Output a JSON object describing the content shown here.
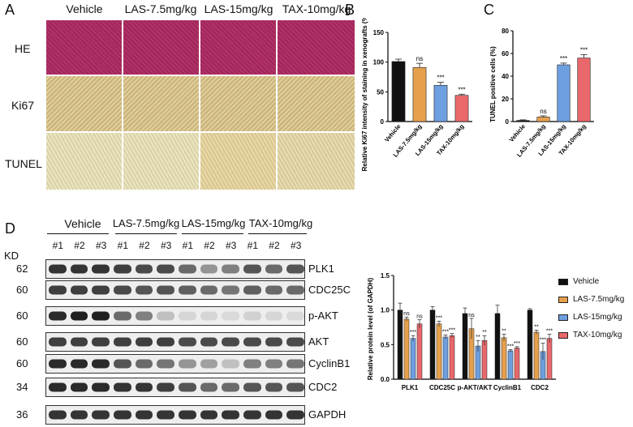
{
  "panel_labels": {
    "A": "A",
    "B": "B",
    "C": "C",
    "D": "D"
  },
  "panelA": {
    "columns": [
      "Vehicle",
      "LAS-7.5mg/kg",
      "LAS-15mg/kg",
      "TAX-10mg/kg"
    ],
    "rows": [
      "HE",
      "Ki67",
      "TUNEL"
    ]
  },
  "chart_data": [
    {
      "type": "bar",
      "panel": "B",
      "categories": [
        "Vehicle",
        "LAS-7.5mg/kg",
        "LAS-15mg/kg",
        "TAX-10mg/kg"
      ],
      "values": [
        101,
        91,
        61,
        44
      ],
      "errors": [
        4,
        7,
        5,
        2
      ],
      "significance": [
        "",
        "ns",
        "***",
        "***"
      ],
      "ylabel": "Relative Ki67 intensity of staining in xenografts (%)",
      "ylim": [
        0,
        150
      ],
      "yticks": [
        0,
        50,
        100,
        150
      ],
      "colors": [
        "#111111",
        "#e6a04c",
        "#6e9fe0",
        "#e8686c"
      ]
    },
    {
      "type": "bar",
      "panel": "C",
      "categories": [
        "Vehicle",
        "LAS-7.5mg/kg",
        "LAS-15mg/kg",
        "TAX-10mg/kg"
      ],
      "values": [
        1,
        4,
        50,
        56
      ],
      "errors": [
        0.5,
        1,
        1.5,
        3
      ],
      "significance": [
        "",
        "ns",
        "***",
        "***"
      ],
      "ylabel": "TUNEL positive cells (%)",
      "ylim": [
        0,
        80
      ],
      "yticks": [
        0,
        20,
        40,
        60,
        80
      ],
      "colors": [
        "#111111",
        "#e6a04c",
        "#6e9fe0",
        "#e8686c"
      ]
    },
    {
      "type": "bar",
      "panel": "D-quant",
      "categories": [
        "PLK1",
        "CDC25C",
        "p-AKT/AKT",
        "CyclinB1",
        "CDC2"
      ],
      "series": [
        {
          "name": "Vehicle",
          "values": [
            1.0,
            1.0,
            0.95,
            0.95,
            1.0
          ],
          "errors": [
            0.1,
            0.05,
            0.08,
            0.12,
            0.02
          ]
        },
        {
          "name": "LAS-7.5mg/kg",
          "values": [
            0.87,
            0.8,
            0.73,
            0.6,
            0.68
          ],
          "errors": [
            0.03,
            0.04,
            0.15,
            0.05,
            0.03
          ]
        },
        {
          "name": "LAS-15mg/kg",
          "values": [
            0.59,
            0.61,
            0.48,
            0.41,
            0.4
          ],
          "errors": [
            0.04,
            0.03,
            0.08,
            0.02,
            0.12
          ]
        },
        {
          "name": "TAX-10mg/kg",
          "values": [
            0.8,
            0.63,
            0.56,
            0.45,
            0.59
          ],
          "errors": [
            0.06,
            0.03,
            0.07,
            0.02,
            0.06
          ]
        }
      ],
      "significance": [
        [
          "",
          "ns",
          "***",
          "ns"
        ],
        [
          "",
          "***",
          "***",
          "***"
        ],
        [
          "",
          "ns",
          "**",
          "**"
        ],
        [
          "",
          "**",
          "***",
          "***"
        ],
        [
          "",
          "**",
          "***",
          "***"
        ]
      ],
      "ylabel": "Relative protein level (of GAPDH)",
      "ylim": [
        0,
        1.5
      ],
      "yticks": [
        "0.0",
        "0.5",
        "1.0",
        "1.5"
      ],
      "colors": [
        "#111111",
        "#e6a04c",
        "#6e9fe0",
        "#e8686c"
      ]
    }
  ],
  "panelD": {
    "groups": [
      "Vehicle",
      "LAS-7.5mg/kg",
      "LAS-15mg/kg",
      "TAX-10mg/kg"
    ],
    "lanes": [
      "#1",
      "#2",
      "#3",
      "#1",
      "#2",
      "#3",
      "#1",
      "#2",
      "#3",
      "#1",
      "#2",
      "#3"
    ],
    "kd_label": "KD",
    "blots": [
      {
        "mw": "62",
        "protein": "PLK1",
        "intensity": [
          0.85,
          0.85,
          0.85,
          0.8,
          0.75,
          0.75,
          0.6,
          0.4,
          0.5,
          0.7,
          0.6,
          0.7
        ]
      },
      {
        "mw": "60",
        "protein": "CDC25C",
        "intensity": [
          0.8,
          0.8,
          0.8,
          0.75,
          0.7,
          0.7,
          0.65,
          0.6,
          0.55,
          0.65,
          0.6,
          0.6
        ]
      },
      {
        "mw": "60",
        "protein": "p-AKT",
        "intensity": [
          0.9,
          0.95,
          0.95,
          0.6,
          0.5,
          0.2,
          0.1,
          0.1,
          0.08,
          0.12,
          0.1,
          0.08
        ]
      },
      {
        "mw": "60",
        "protein": "AKT",
        "intensity": [
          0.8,
          0.8,
          0.8,
          0.8,
          0.8,
          0.8,
          0.75,
          0.75,
          0.75,
          0.75,
          0.75,
          0.75
        ]
      },
      {
        "mw": "60",
        "protein": "CyclinB1",
        "intensity": [
          0.9,
          0.9,
          0.9,
          0.7,
          0.6,
          0.55,
          0.4,
          0.35,
          0.2,
          0.5,
          0.5,
          0.55
        ]
      },
      {
        "mw": "34",
        "protein": "CDC2",
        "intensity": [
          0.9,
          0.9,
          0.9,
          0.85,
          0.85,
          0.8,
          0.7,
          0.6,
          0.6,
          0.7,
          0.7,
          0.7
        ]
      },
      {
        "mw": "36",
        "protein": "GAPDH",
        "intensity": [
          0.85,
          0.85,
          0.85,
          0.85,
          0.85,
          0.85,
          0.85,
          0.85,
          0.85,
          0.85,
          0.85,
          0.85
        ]
      }
    ]
  }
}
